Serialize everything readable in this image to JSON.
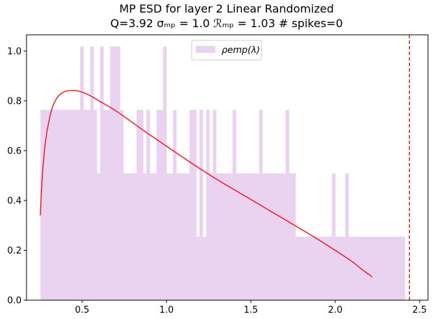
{
  "colors": {
    "histogram_fill": "#ead3f1",
    "fit_curve": "#ff0000",
    "spike_marker": "#ff0000",
    "axes": "#000000",
    "background": "#ffffff"
  },
  "chart_data": {
    "type": "bar",
    "title_line_1": "MP ESD for layer 2 Linear Randomized",
    "title_line_2": "Q=3.92 σₘₚ = 1.0 ℛₘₚ = 1.03 # spikes=0",
    "xlabel": "",
    "ylabel": "",
    "xlim": [
      0.17,
      2.55
    ],
    "ylim": [
      0.0,
      1.065
    ],
    "x_ticks": [
      0.5,
      1.0,
      1.5,
      2.0,
      2.5
    ],
    "x_tick_labels": [
      "0.5",
      "1.0",
      "1.5",
      "2.0",
      "2.5"
    ],
    "y_ticks": [
      0.0,
      0.2,
      0.4,
      0.6,
      0.8,
      1.0
    ],
    "y_tick_labels": [
      "0.0",
      "0.2",
      "0.4",
      "0.6",
      "0.8",
      "1.0"
    ],
    "grid": false,
    "legend": {
      "placement": "top-center",
      "entries": [
        {
          "label": "ρemp(λ)",
          "kind": "histogram"
        }
      ]
    },
    "histogram": {
      "bin_start": 0.253,
      "bin_width": 0.01963,
      "densities": [
        0.764,
        0.764,
        0.764,
        0.764,
        0.764,
        0.764,
        0.764,
        0.764,
        0.764,
        0.764,
        0.764,
        0.764,
        1.018,
        0.764,
        0.764,
        1.018,
        0.764,
        0.509,
        1.018,
        0.764,
        0.764,
        1.018,
        1.018,
        1.018,
        0.764,
        0.509,
        0.509,
        0.509,
        0.509,
        0.764,
        0.764,
        0.509,
        0.764,
        0.509,
        0.509,
        0.764,
        0.764,
        1.018,
        0.509,
        0.509,
        0.764,
        0.509,
        0.509,
        0.509,
        0.509,
        0.764,
        0.764,
        0.255,
        0.764,
        0.255,
        0.764,
        0.509,
        0.764,
        0.509,
        0.509,
        0.509,
        0.509,
        0.509,
        0.764,
        0.509,
        0.509,
        0.509,
        0.509,
        0.509,
        0.509,
        0.509,
        0.764,
        0.509,
        0.509,
        0.509,
        0.509,
        0.509,
        0.509,
        0.509,
        0.764,
        0.509,
        0.509,
        0.255,
        0.255,
        0.255,
        0.255,
        0.255,
        0.255,
        0.255,
        0.255,
        0.255,
        0.255,
        0.255,
        0.509,
        0.255,
        0.255,
        0.255,
        0.509,
        0.255,
        0.255,
        0.255,
        0.255,
        0.255,
        0.255,
        0.255,
        0.255,
        0.255,
        0.255,
        0.255,
        0.255,
        0.255,
        0.255,
        0.255,
        0.255,
        0.255
      ]
    },
    "fit_curve": {
      "name": "MP fit",
      "x": [
        0.252,
        0.262,
        0.275,
        0.29,
        0.31,
        0.33,
        0.36,
        0.4,
        0.45,
        0.5,
        0.55,
        0.6,
        0.7,
        0.8,
        0.9,
        1.0,
        1.1,
        1.2,
        1.3,
        1.4,
        1.5,
        1.6,
        1.7,
        1.8,
        1.9,
        2.0,
        2.1,
        2.15,
        2.2,
        2.22
      ],
      "y": [
        0.34,
        0.48,
        0.59,
        0.67,
        0.74,
        0.785,
        0.82,
        0.838,
        0.842,
        0.835,
        0.82,
        0.8,
        0.76,
        0.712,
        0.664,
        0.618,
        0.572,
        0.527,
        0.484,
        0.444,
        0.404,
        0.364,
        0.324,
        0.284,
        0.243,
        0.2,
        0.155,
        0.128,
        0.103,
        0.093
      ]
    },
    "spike_marker_x": 2.44
  }
}
